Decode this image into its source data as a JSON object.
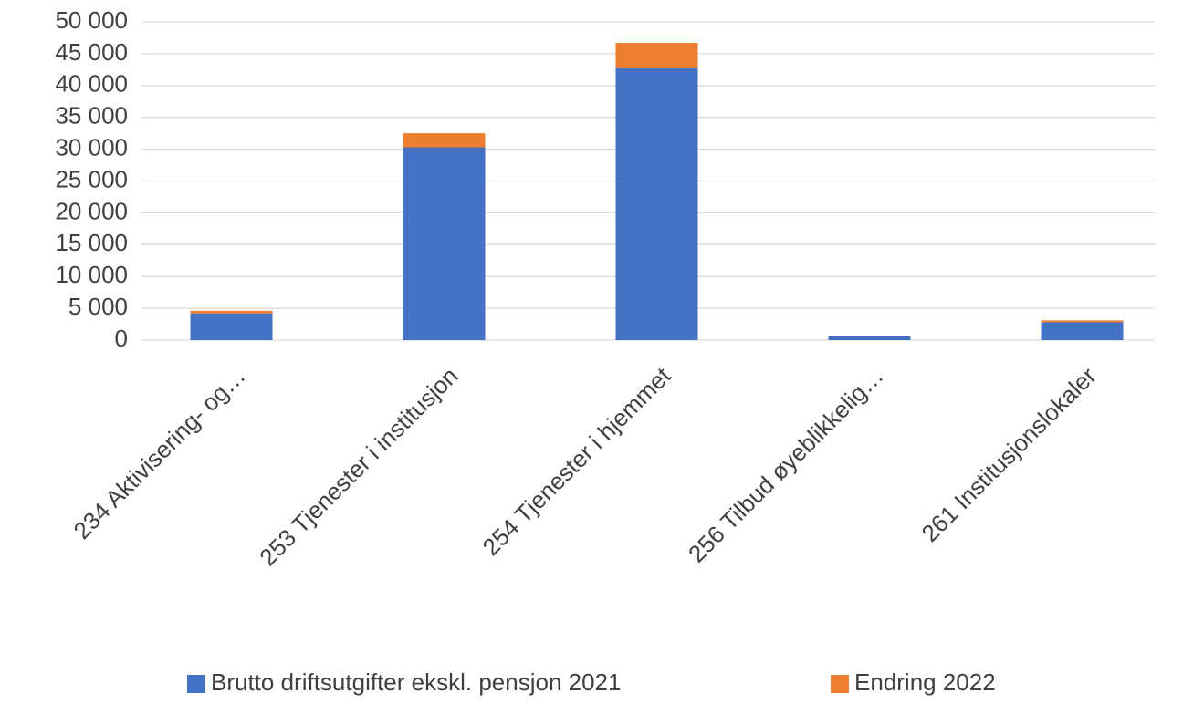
{
  "chart_data": {
    "type": "stacked_bar",
    "categories": [
      "234 Aktivisering- og…",
      "253 Tjenester i institusjon",
      "254 Tjenester i hjemmet",
      "256 Tilbud øyeblikkelig…",
      "261 Institusjonslokaler"
    ],
    "series": [
      {
        "name": "Brutto driftsutgifter ekskl. pensjon 2021",
        "color": "#4472c4",
        "values": [
          4200,
          30300,
          42700,
          600,
          2800
        ]
      },
      {
        "name": "Endring 2022",
        "color": "#ed7d31",
        "values": [
          400,
          2200,
          4000,
          50,
          300
        ]
      }
    ],
    "ylim": [
      0,
      50000
    ],
    "yticks": [
      0,
      {
        "value": 5000,
        "label": "5 000"
      },
      {
        "value": 10000,
        "label": "10 000"
      },
      {
        "value": 15000,
        "label": "15 000"
      },
      {
        "value": 20000,
        "label": "20 000"
      },
      {
        "value": 25000,
        "label": "25 000"
      },
      {
        "value": 30000,
        "label": "30 000"
      },
      {
        "value": 35000,
        "label": "35 000"
      },
      {
        "value": 40000,
        "label": "40 000"
      },
      {
        "value": 45000,
        "label": "45 000"
      },
      {
        "value": 50000,
        "label": "50 000"
      }
    ],
    "grid": true,
    "legend": "bottom"
  }
}
